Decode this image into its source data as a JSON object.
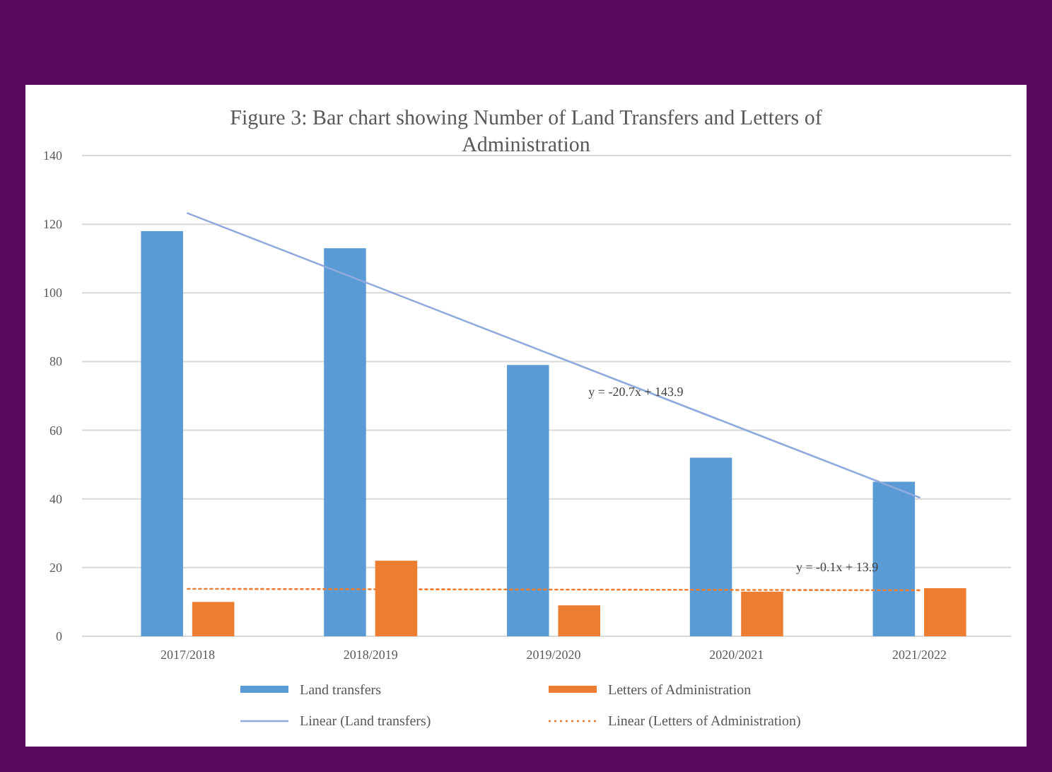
{
  "chart_data": {
    "type": "bar",
    "title": "Figure 3: Bar chart showing Number of Land Transfers and Letters of Administration",
    "categories": [
      "2017/2018",
      "2018/2019",
      "2019/2020",
      "2020/2021",
      "2021/2022"
    ],
    "series": [
      {
        "name": "Land transfers",
        "color": "#5b9bd5",
        "values": [
          118,
          113,
          79,
          52,
          45
        ]
      },
      {
        "name": "Letters of Administration",
        "color": "#ed7d31",
        "values": [
          10,
          22,
          9,
          13,
          14
        ]
      },
      {
        "name": "Linear (Land transfers)",
        "type": "line",
        "color": "#8faadc",
        "line_style": "solid",
        "values": [
          123.2,
          102.5,
          81.8,
          61.1,
          40.4
        ]
      },
      {
        "name": "Linear (Letters of Administration)",
        "type": "line",
        "color": "#ed7d31",
        "line_style": "dotted",
        "values": [
          13.8,
          13.7,
          13.6,
          13.5,
          13.4
        ]
      }
    ],
    "annotations": [
      "y = -20.7x + 143.9",
      "y = -0.1x + 13.9"
    ],
    "ylim": [
      0,
      140
    ],
    "yticks": [
      0,
      20,
      40,
      60,
      80,
      100,
      120,
      140
    ],
    "grid": "y",
    "legend": "bottom"
  }
}
